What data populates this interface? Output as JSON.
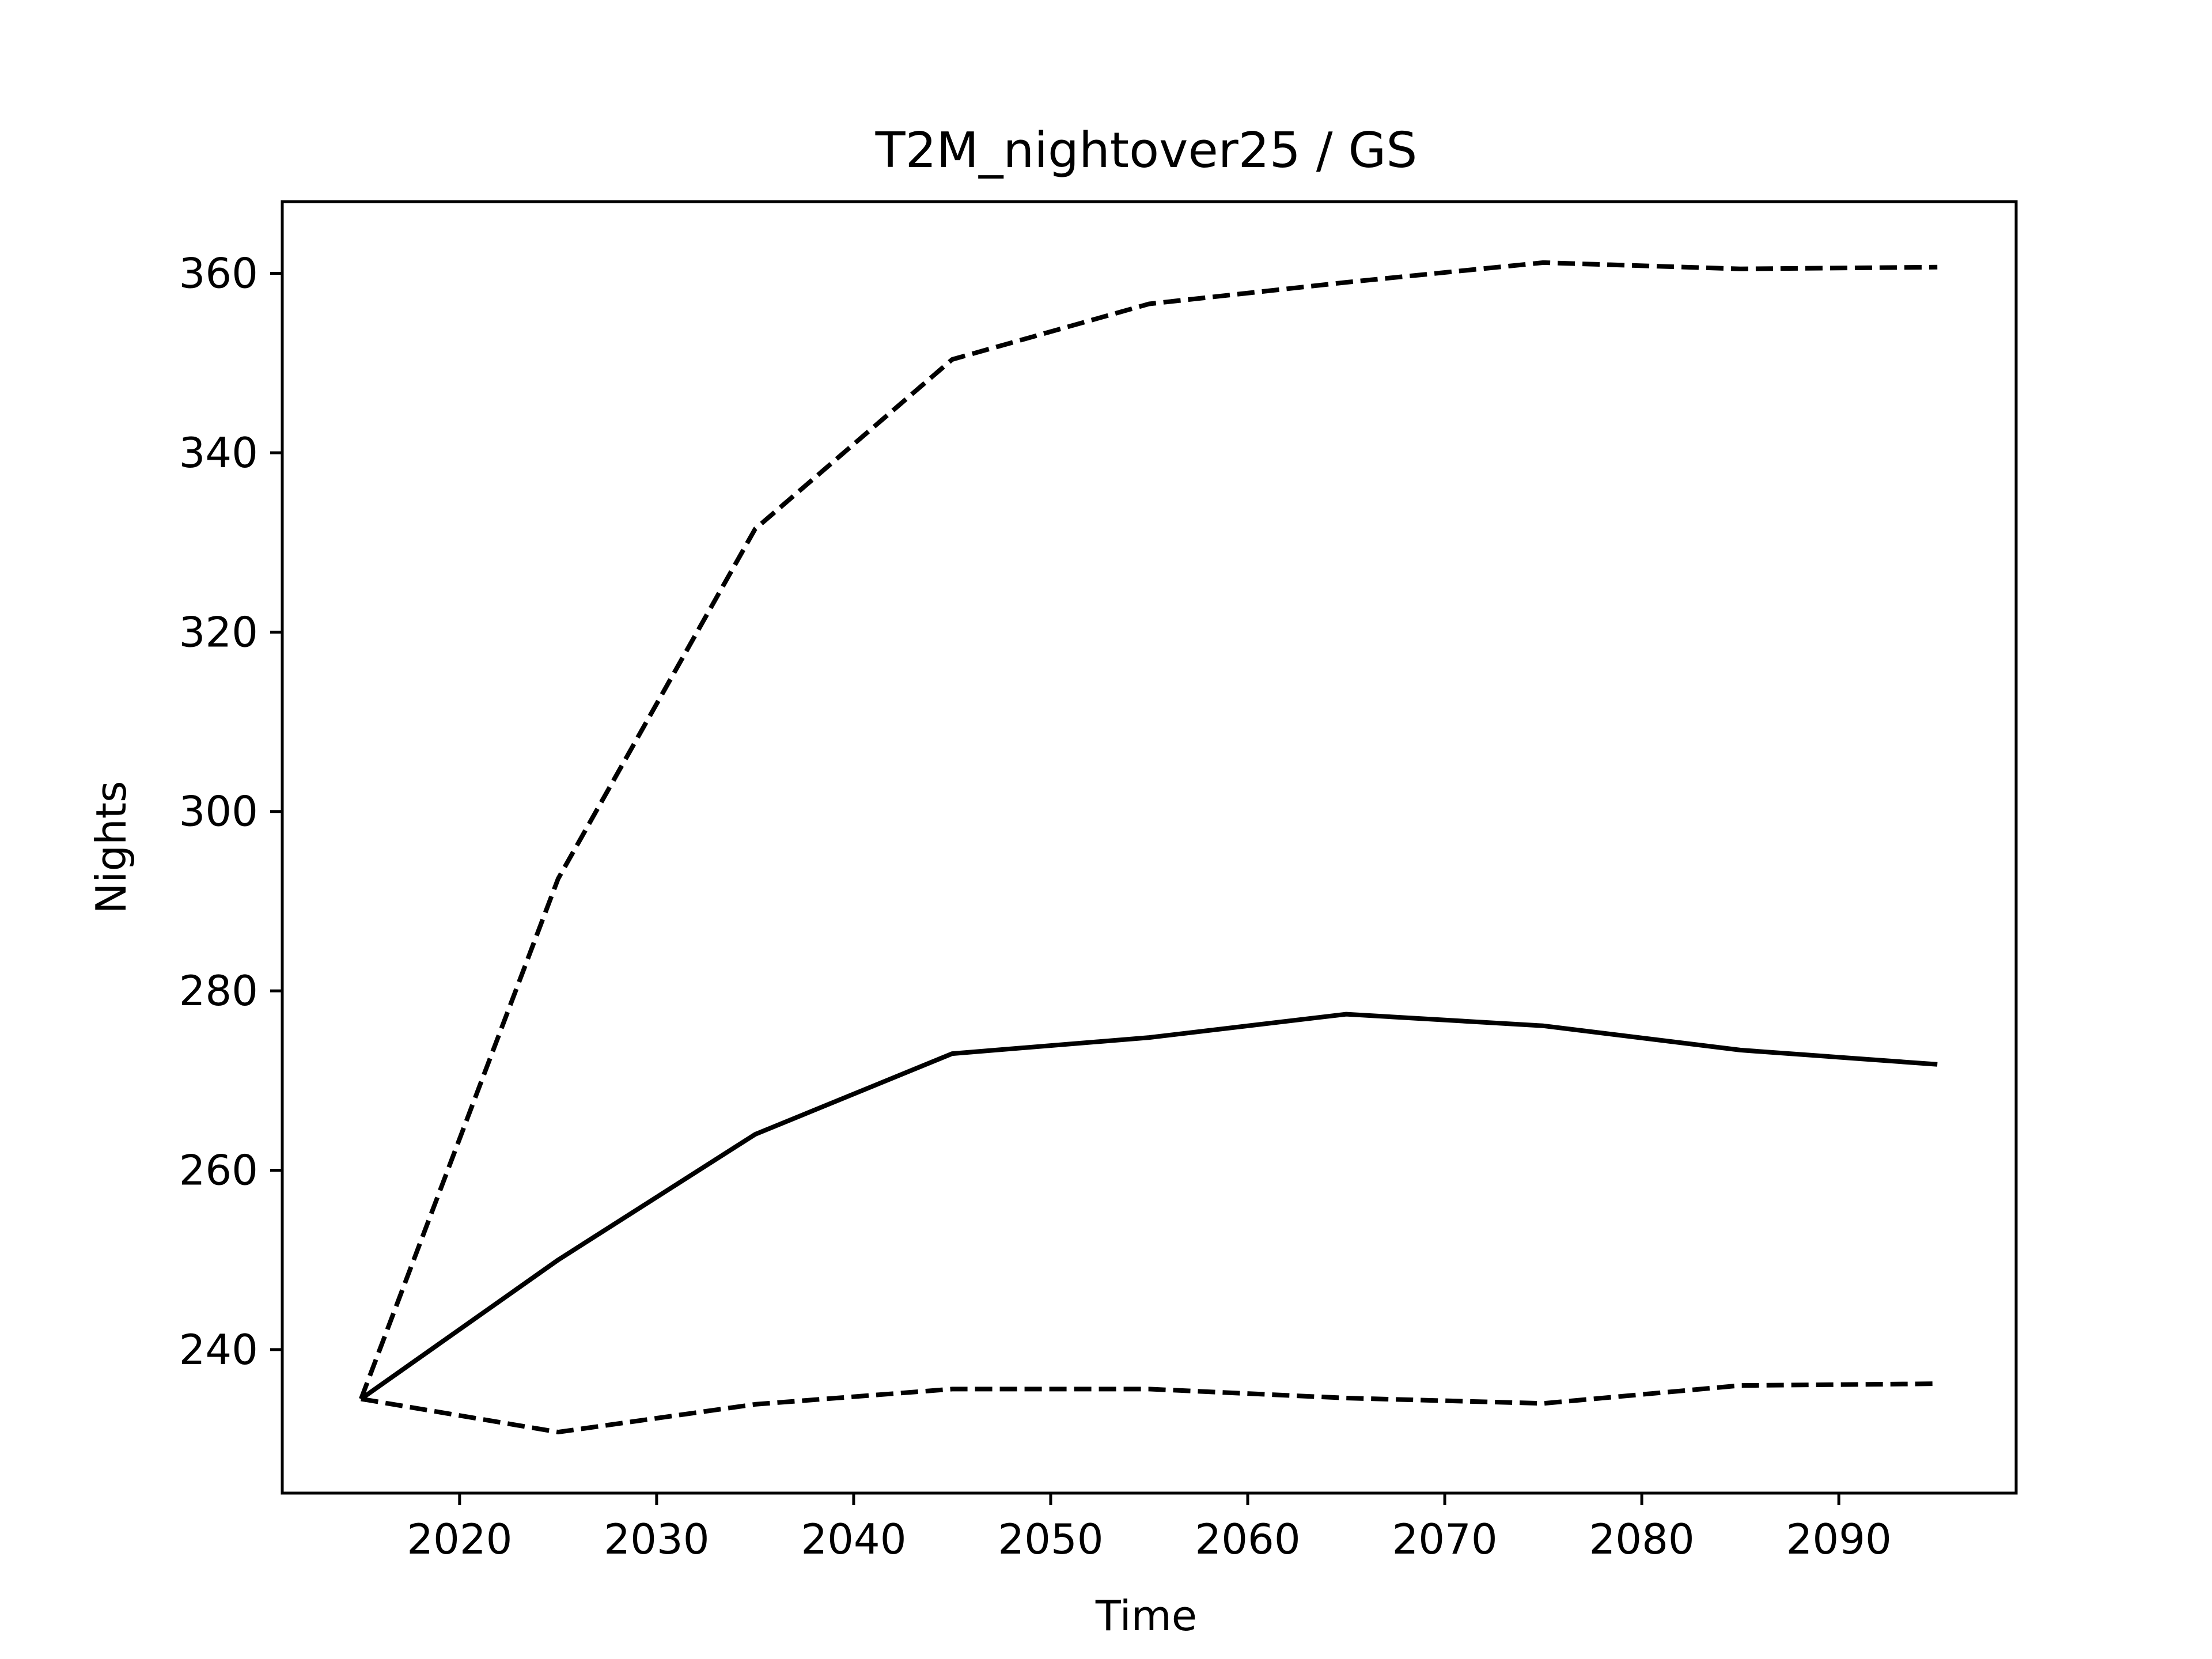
{
  "chart_data": {
    "type": "line",
    "title": "T2M_nightover25 / GS",
    "xlabel": "Time",
    "ylabel": "Nights",
    "xlim": [
      2011,
      2099
    ],
    "ylim": [
      224,
      368
    ],
    "xticks": [
      2020,
      2030,
      2040,
      2050,
      2060,
      2070,
      2080,
      2090
    ],
    "yticks": [
      240,
      260,
      280,
      300,
      320,
      340,
      360
    ],
    "grid": false,
    "legend": "none",
    "x": [
      2015,
      2025,
      2035,
      2045,
      2055,
      2065,
      2075,
      2085,
      2095
    ],
    "series": [
      {
        "style": "solid",
        "color": "#000000",
        "values": [
          234.5,
          250.0,
          264.0,
          273.0,
          274.8,
          277.4,
          276.1,
          273.4,
          271.8
        ]
      },
      {
        "style": "dashed",
        "color": "#000000",
        "values": [
          234.5,
          292.5,
          331.5,
          350.4,
          356.6,
          359.0,
          361.2,
          360.5,
          360.7
        ]
      },
      {
        "style": "dashed",
        "color": "#000000",
        "values": [
          234.5,
          230.8,
          233.9,
          235.6,
          235.6,
          234.6,
          234.0,
          236.0,
          236.2
        ]
      }
    ]
  }
}
